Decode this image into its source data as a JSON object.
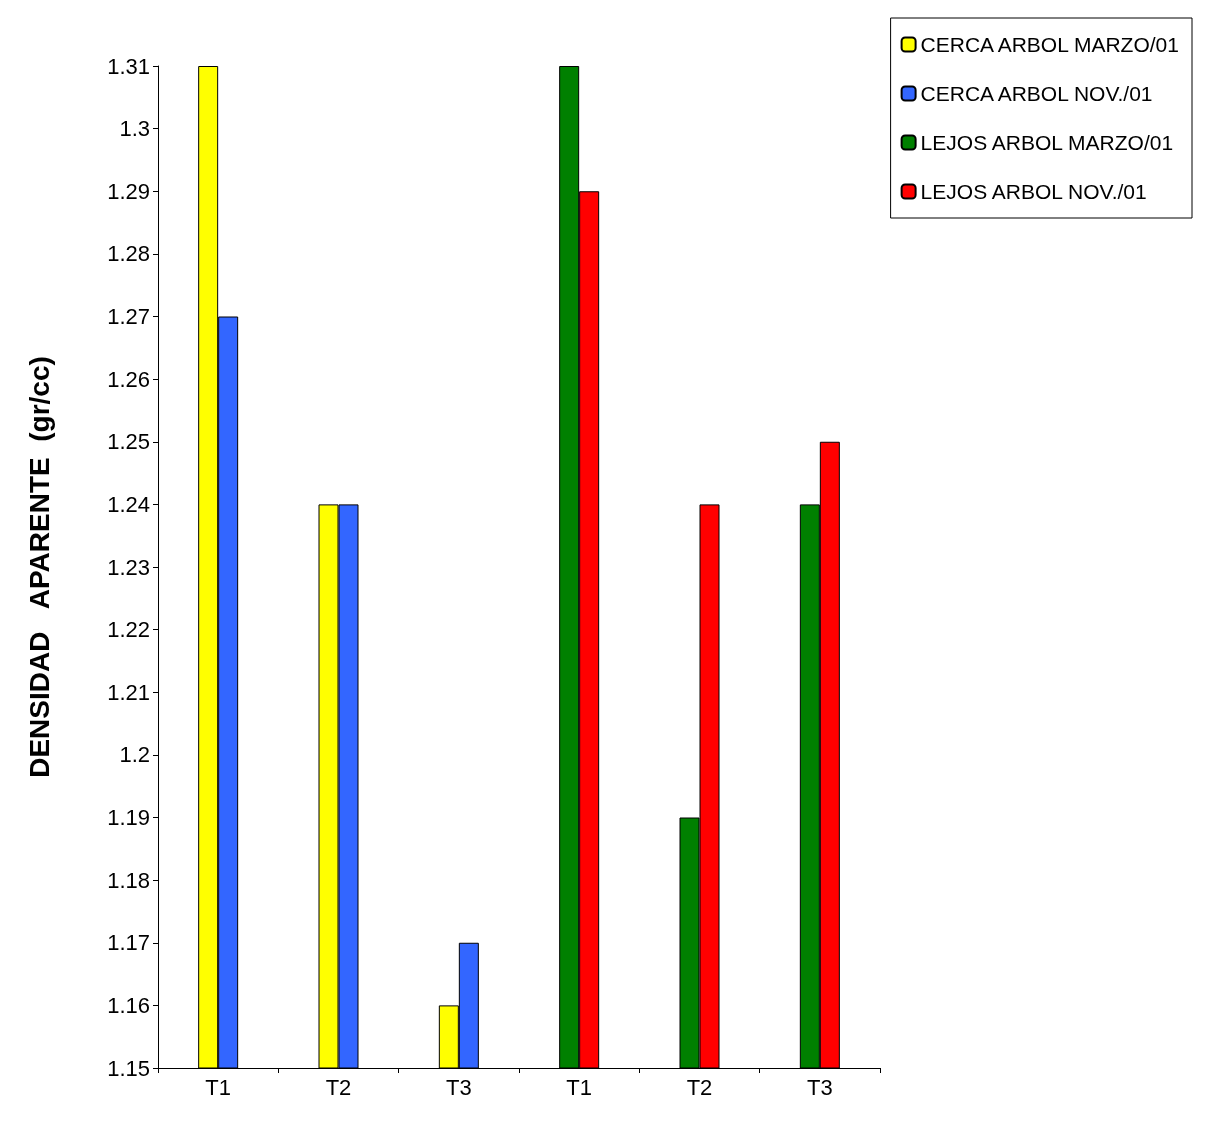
{
  "chart_data": {
    "type": "bar",
    "ylabel": "DENSIDAD   APARENTE  (gr/cc)",
    "categories": [
      "T1",
      "T2",
      "T3",
      "T1",
      "T2",
      "T3"
    ],
    "series": [
      {
        "name": "CERCA ARBOL MARZO/01",
        "color": "#ffff00",
        "values": [
          1.31,
          1.24,
          1.16,
          null,
          null,
          null
        ]
      },
      {
        "name": "CERCA ARBOL NOV./01",
        "color": "#3366ff",
        "values": [
          1.27,
          1.24,
          1.17,
          null,
          null,
          null
        ]
      },
      {
        "name": "LEJOS ARBOL MARZO/01",
        "color": "#008000",
        "values": [
          null,
          null,
          null,
          1.31,
          1.19,
          1.24
        ]
      },
      {
        "name": "LEJOS ARBOL NOV./01",
        "color": "#ff0000",
        "values": [
          null,
          null,
          null,
          1.29,
          1.24,
          1.25
        ]
      }
    ],
    "ylim": [
      1.15,
      1.31
    ],
    "yticks": [
      1.15,
      1.16,
      1.17,
      1.18,
      1.19,
      1.2,
      1.21,
      1.22,
      1.23,
      1.24,
      1.25,
      1.26,
      1.27,
      1.28,
      1.29,
      1.3,
      1.31
    ],
    "grid": false,
    "legend": "top right"
  }
}
